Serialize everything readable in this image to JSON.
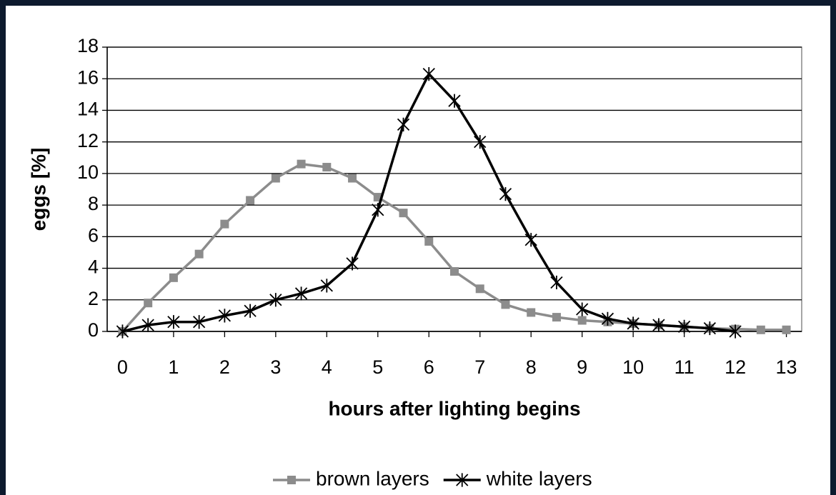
{
  "chart_data": {
    "type": "line",
    "x_label": "hours after lighting begins",
    "y_label": "eggs  [%]",
    "xlim": [
      -0.3,
      13.3
    ],
    "xticks": [
      0,
      1,
      2,
      3,
      4,
      5,
      6,
      7,
      8,
      9,
      10,
      11,
      12,
      13
    ],
    "ylim": [
      0,
      18
    ],
    "yticks": [
      0,
      2,
      4,
      6,
      8,
      10,
      12,
      14,
      16,
      18
    ],
    "grid": true,
    "legend": "bottom",
    "series": [
      {
        "name": "brown layers",
        "color": "#8c8c8c",
        "marker": "square",
        "x": [
          0,
          0.5,
          1,
          1.5,
          2,
          2.5,
          3,
          3.5,
          4,
          4.5,
          5,
          5.5,
          6,
          6.5,
          7,
          7.5,
          8,
          8.5,
          9,
          9.5,
          10,
          10.5,
          11,
          11.5,
          12,
          12.5,
          13
        ],
        "values": [
          0,
          1.8,
          3.4,
          4.9,
          6.8,
          8.3,
          9.7,
          10.6,
          10.4,
          9.7,
          8.5,
          7.5,
          5.7,
          3.8,
          2.7,
          1.7,
          1.2,
          0.9,
          0.7,
          0.6,
          0.5,
          0.4,
          0.3,
          0.2,
          0.15,
          0.1,
          0.1
        ]
      },
      {
        "name": "white layers",
        "color": "#000000",
        "marker": "star",
        "x": [
          0,
          0.5,
          1,
          1.5,
          2,
          2.5,
          3,
          3.5,
          4,
          4.5,
          5,
          5.5,
          6,
          6.5,
          7,
          7.5,
          8,
          8.5,
          9,
          9.5,
          10,
          10.5,
          11,
          11.5,
          12
        ],
        "values": [
          0,
          0.4,
          0.6,
          0.6,
          1.0,
          1.3,
          2.0,
          2.4,
          2.9,
          4.3,
          7.7,
          13.1,
          16.3,
          14.6,
          12.0,
          8.7,
          5.8,
          3.1,
          1.4,
          0.8,
          0.5,
          0.4,
          0.3,
          0.2,
          0.0
        ]
      }
    ]
  }
}
